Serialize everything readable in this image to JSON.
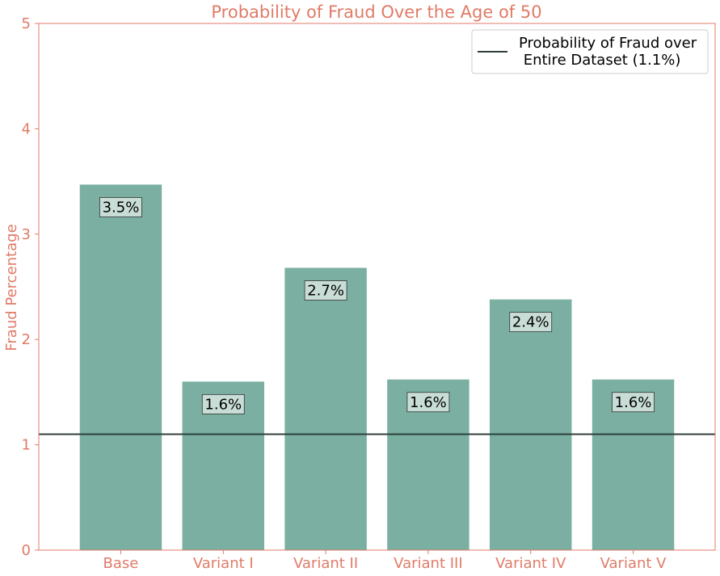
{
  "chart_data": {
    "type": "bar",
    "title": "Probability of Fraud Over the Age of 50",
    "xlabel": "",
    "ylabel": "Fraud Percentage",
    "categories": [
      "Base",
      "Variant I",
      "Variant II",
      "Variant III",
      "Variant IV",
      "Variant V"
    ],
    "values": [
      3.47,
      1.6,
      2.68,
      1.62,
      2.38,
      1.62
    ],
    "data_labels": [
      "3.5%",
      "1.6%",
      "2.7%",
      "1.6%",
      "2.4%",
      "1.6%"
    ],
    "ylim": [
      0,
      5
    ],
    "yticks": [
      "0",
      "1",
      "2",
      "3",
      "4",
      "5"
    ],
    "reference_line": {
      "value": 1.1,
      "label_line1": "Probability of Fraud over",
      "label_line2": " Entire Dataset (1.1%)"
    },
    "legend_position": "top-right",
    "grid": false
  },
  "colors": {
    "bar": "#7aafa1",
    "text": "#e07b67",
    "axes": "#e07b67",
    "reference_line": "#2f3f3a",
    "label_box": "#c9ddd7",
    "legend_border": "#cccccc"
  }
}
